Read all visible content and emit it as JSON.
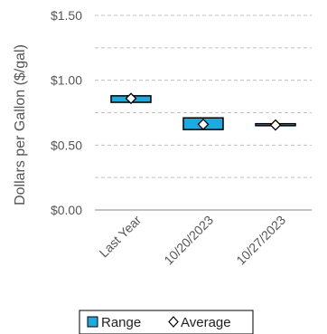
{
  "chart_data": {
    "type": "bar",
    "ylabel": "Dollars per Gallon ($/gal)",
    "ylim": [
      0,
      1.5
    ],
    "y_ticks": [
      0,
      0.5,
      1.0,
      1.5
    ],
    "y_tick_labels": [
      "$0.00",
      "$0.50",
      "$1.00",
      "$1.50"
    ],
    "grid": "horizontal dashed at 0.25 intervals",
    "categories": [
      "Last Year",
      "10/20/2023",
      "10/27/2023"
    ],
    "series": [
      {
        "name": "Range",
        "low": [
          0.83,
          0.62,
          0.65
        ],
        "high": [
          0.88,
          0.71,
          0.665
        ]
      },
      {
        "name": "Average",
        "values": [
          0.86,
          0.66,
          0.655
        ]
      }
    ],
    "legend_position": "bottom",
    "colors": {
      "range_fill": "#1FA9E1",
      "range_stroke": "#000000",
      "average_marker_fill": "#ffffff",
      "average_marker_stroke": "#000000",
      "grid": "#bfbfbf"
    }
  }
}
